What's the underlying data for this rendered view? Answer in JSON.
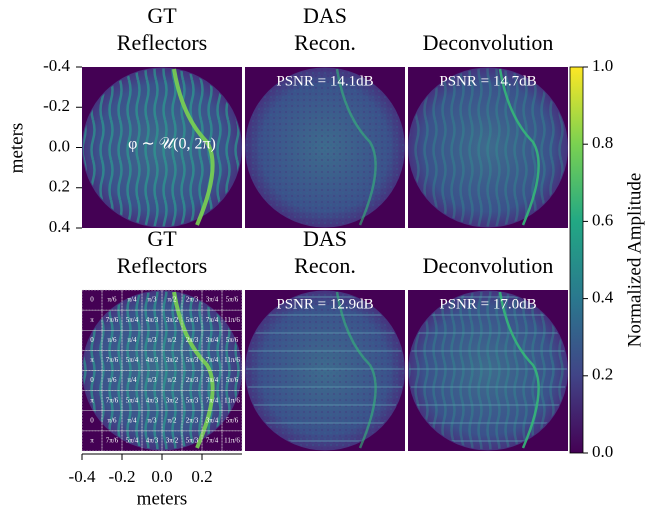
{
  "figure": {
    "rows": [
      {
        "titles": [
          [
            "GT",
            "Reflectors"
          ],
          [
            "DAS",
            "Recon."
          ],
          [
            "Deconvolution"
          ]
        ],
        "annotation": "φ ∼ 𝒰(0, 2π)",
        "psnr": [
          "PSNR = 14.1dB",
          "PSNR = 14.7dB"
        ]
      },
      {
        "titles": [
          [
            "GT",
            "Reflectors"
          ],
          [
            "DAS",
            "Recon."
          ],
          [
            "Deconvolution"
          ]
        ],
        "psnr": [
          "PSNR = 12.9dB",
          "PSNR = 17.0dB"
        ]
      }
    ],
    "y_axis": {
      "label": "meters",
      "lim": [
        -0.4,
        0.4
      ],
      "ticks": [
        {
          "value": -0.4,
          "label": "-0.4"
        },
        {
          "value": -0.2,
          "label": "-0.2"
        },
        {
          "value": 0,
          "label": "0.0"
        },
        {
          "value": 0.2,
          "label": "0.2"
        },
        {
          "value": 0.4,
          "label": "0.4"
        }
      ]
    },
    "x_axis": {
      "label": "meters",
      "lim": [
        -0.4,
        0.4
      ],
      "ticks": [
        {
          "value": -0.4,
          "label": "-0.4"
        },
        {
          "value": -0.2,
          "label": "-0.2"
        },
        {
          "value": 0,
          "label": "0.0"
        },
        {
          "value": 0.2,
          "label": "0.2"
        }
      ]
    },
    "colorbar": {
      "label": "Normalized Amplitude",
      "lim": [
        0,
        1
      ],
      "ticks": [
        {
          "value": 0,
          "label": "0.0"
        },
        {
          "value": 0.2,
          "label": "0.2"
        },
        {
          "value": 0.4,
          "label": "0.4"
        },
        {
          "value": 0.6,
          "label": "0.6"
        },
        {
          "value": 0.8,
          "label": "0.8"
        },
        {
          "value": 1,
          "label": "1.0"
        }
      ]
    },
    "phase_grid": [
      [
        "0",
        "π/6",
        "π/4",
        "π/3",
        "π/2",
        "2π/3",
        "3π/4",
        "5π/6"
      ],
      [
        "π",
        "7π/6",
        "5π/4",
        "4π/3",
        "3π/2",
        "5π/3",
        "7π/4",
        "11π/6"
      ],
      [
        "0",
        "π/6",
        "π/4",
        "π/3",
        "π/2",
        "2π/3",
        "3π/4",
        "5π/6"
      ],
      [
        "π",
        "7π/6",
        "5π/4",
        "4π/3",
        "3π/2",
        "5π/3",
        "7π/4",
        "11π/6"
      ],
      [
        "0",
        "π/6",
        "π/4",
        "π/3",
        "π/2",
        "2π/3",
        "3π/4",
        "5π/6"
      ],
      [
        "π",
        "7π/6",
        "5π/4",
        "4π/3",
        "3π/2",
        "5π/3",
        "7π/4",
        "11π/6"
      ],
      [
        "0",
        "π/6",
        "π/4",
        "π/3",
        "π/2",
        "2π/3",
        "3π/4",
        "5π/6"
      ],
      [
        "π",
        "7π/6",
        "5π/4",
        "4π/3",
        "3π/2",
        "5π/3",
        "7π/4",
        "11π/6"
      ]
    ]
  }
}
